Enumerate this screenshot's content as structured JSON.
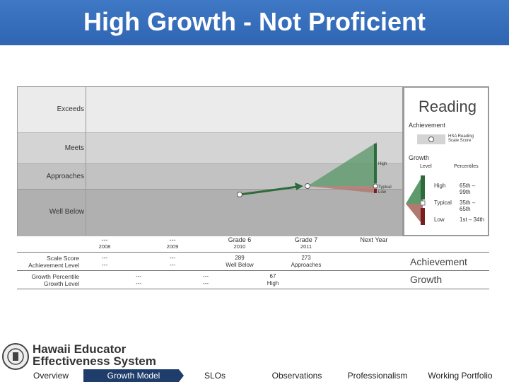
{
  "header": {
    "title": "High Growth - Not Proficient"
  },
  "chart": {
    "bands": [
      "Exceeds",
      "Meets",
      "Approaches",
      "Well Below"
    ],
    "x_labels": [
      {
        "main": "---",
        "sub": "2008"
      },
      {
        "main": "---",
        "sub": "2009"
      },
      {
        "main": "Grade 6",
        "sub": "2010"
      },
      {
        "main": "Grade 7",
        "sub": "2011"
      },
      {
        "main": "Next Year",
        "sub": ""
      }
    ],
    "growth_marks": {
      "high": "High",
      "typical": "Typical",
      "low": "Low"
    }
  },
  "legend": {
    "title": "Reading",
    "achievement": "Achievement",
    "hsa_label": "HSA Reading Scale Score",
    "growth": "Growth",
    "level_hdr": "Level",
    "percentiles_hdr": "Percentiles",
    "rows": [
      {
        "level": "High",
        "range": "65th – 99th"
      },
      {
        "level": "Typical",
        "range": "35th – 65th"
      },
      {
        "level": "Low",
        "range": "1st – 34th"
      }
    ]
  },
  "table": {
    "achievement_title": "Achievement",
    "growth_title": "Growth",
    "labels": {
      "scale_score": "Scale Score",
      "achievement_level": "Achievement Level",
      "growth_percentile": "Growth Percentile",
      "growth_level": "Growth Level"
    },
    "scale_scores": [
      "---",
      "---",
      "289",
      "273"
    ],
    "achievement_levels": [
      "---",
      "---",
      "Well Below",
      "Approaches"
    ],
    "growth_percentiles": [
      "---",
      "---",
      "67"
    ],
    "growth_levels": [
      "---",
      "---",
      "High"
    ]
  },
  "footer": {
    "logo_line1": "Hawaii Educator",
    "logo_line2": "Effectiveness System",
    "nav": [
      "Overview",
      "Growth Model",
      "SLOs",
      "Observations",
      "Professionalism",
      "Working Portfolio"
    ]
  },
  "colors": {
    "header_blue": "#3a71bf",
    "growth_high": "#2e6b3c",
    "growth_low": "#7a1f1f",
    "nav_active": "#1f3d6a"
  }
}
